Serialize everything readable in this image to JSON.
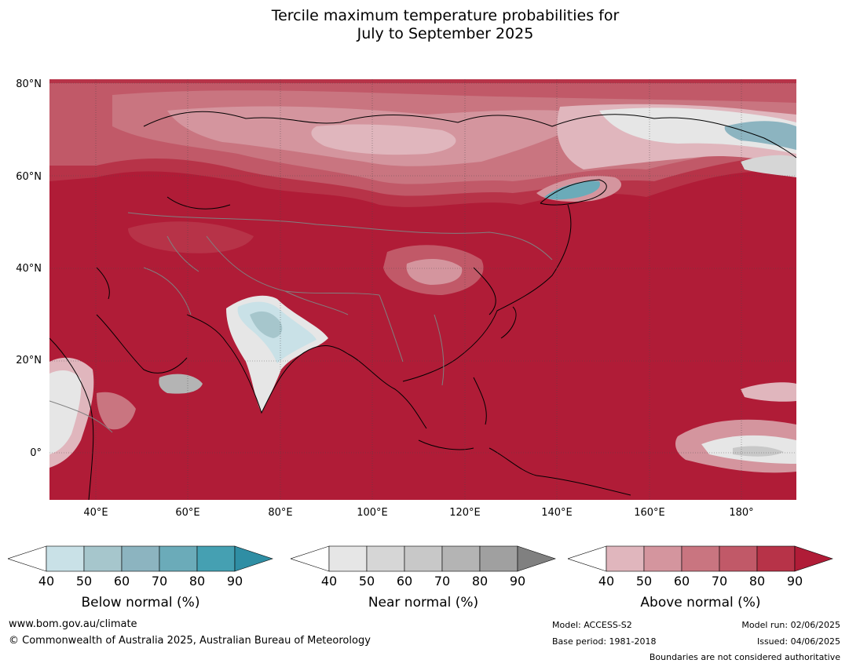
{
  "title": {
    "line1": "Tercile maximum temperature probabilities for",
    "line2": "July to September 2025"
  },
  "axes": {
    "lat_labels": [
      "80°N",
      "60°N",
      "40°N",
      "20°N",
      "0°"
    ],
    "lon_labels": [
      "40°E",
      "60°E",
      "80°E",
      "100°E",
      "120°E",
      "140°E",
      "160°E",
      "180°"
    ]
  },
  "colorbars": [
    {
      "name": "below",
      "label": "Below normal (%)",
      "ticks": [
        "40",
        "50",
        "60",
        "70",
        "80",
        "90"
      ],
      "colors": [
        "#ffffff",
        "#c9e1e7",
        "#a6c6cc",
        "#8cb4c0",
        "#6babb9",
        "#45a0b2",
        "#2f8ea4"
      ]
    },
    {
      "name": "near",
      "label": "Near normal (%)",
      "ticks": [
        "40",
        "50",
        "60",
        "70",
        "80",
        "90"
      ],
      "colors": [
        "#ffffff",
        "#e6e6e6",
        "#d6d6d6",
        "#c8c8c8",
        "#b4b4b4",
        "#a0a0a0",
        "#808080"
      ]
    },
    {
      "name": "above",
      "label": "Above normal (%)",
      "ticks": [
        "40",
        "50",
        "60",
        "70",
        "80",
        "90"
      ],
      "colors": [
        "#ffffff",
        "#e0b6bd",
        "#d4959e",
        "#c97580",
        "#c15968",
        "#b73348",
        "#b01c37"
      ]
    }
  ],
  "footer": {
    "website": "www.bom.gov.au/climate",
    "copyright": "© Commonwealth of Australia 2025, Australian Bureau of Meteorology",
    "model": "Model: ACCESS-S2",
    "base_period": "Base period: 1981-2018",
    "model_run": "Model run: 02/06/2025",
    "issued": "Issued: 04/06/2025",
    "disclaimer": "Boundaries are not considered authoritative"
  },
  "colors": {
    "map_base": "#b01c37",
    "above_80": "#b73348",
    "above_70": "#c15968",
    "above_60": "#c97580",
    "above_50": "#d4959e",
    "above_40": "#e0b6bd",
    "near": "#d6d6d6",
    "below": "#8cb4c0",
    "coast": "#000000",
    "border": "#808080"
  }
}
